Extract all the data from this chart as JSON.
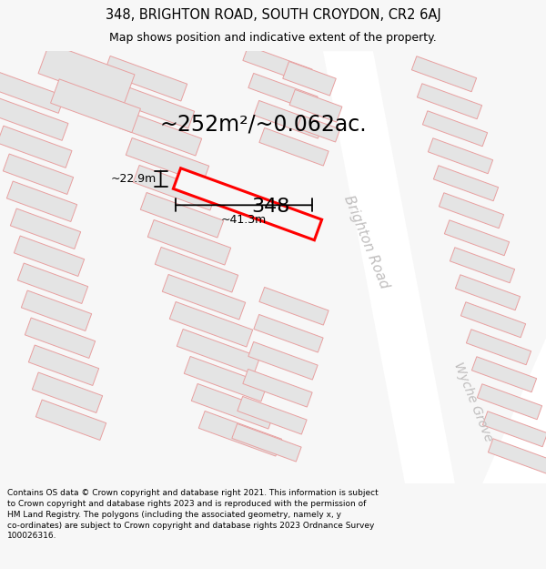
{
  "title": "348, BRIGHTON ROAD, SOUTH CROYDON, CR2 6AJ",
  "subtitle": "Map shows position and indicative extent of the property.",
  "area_text": "~252m²/~0.062ac.",
  "label_348": "348",
  "dim_height": "~22.9m",
  "dim_width": "~41.3m",
  "street1": "Brighton Road",
  "street2": "Wyche Grove",
  "footer_line1": "Contains OS data © Crown copyright and database right 2021. This information is subject",
  "footer_line2": "to Crown copyright and database rights 2023 and is reproduced with the permission of",
  "footer_line3": "HM Land Registry. The polygons (including the associated geometry, namely x, y",
  "footer_line4": "co-ordinates) are subject to Crown copyright and database rights 2023 Ordnance Survey",
  "footer_line5": "100026316.",
  "bg_color": "#f7f7f7",
  "map_bg": "#efefef",
  "building_fill": "#e4e4e4",
  "building_edge": "#e8a0a0",
  "highlight_fill": "#f7f7f7",
  "highlight_edge": "#ff0000",
  "road_color": "#ffffff",
  "dim_line_color": "#000000",
  "street_label_color": "#c0bebe",
  "title_color": "#000000",
  "footer_color": "#000000",
  "area_text_color": "#000000",
  "title_fontsize": 10.5,
  "subtitle_fontsize": 9,
  "area_fontsize": 17,
  "label_fontsize": 16,
  "dim_fontsize": 9,
  "street_fontsize": 11,
  "footer_fontsize": 6.5
}
